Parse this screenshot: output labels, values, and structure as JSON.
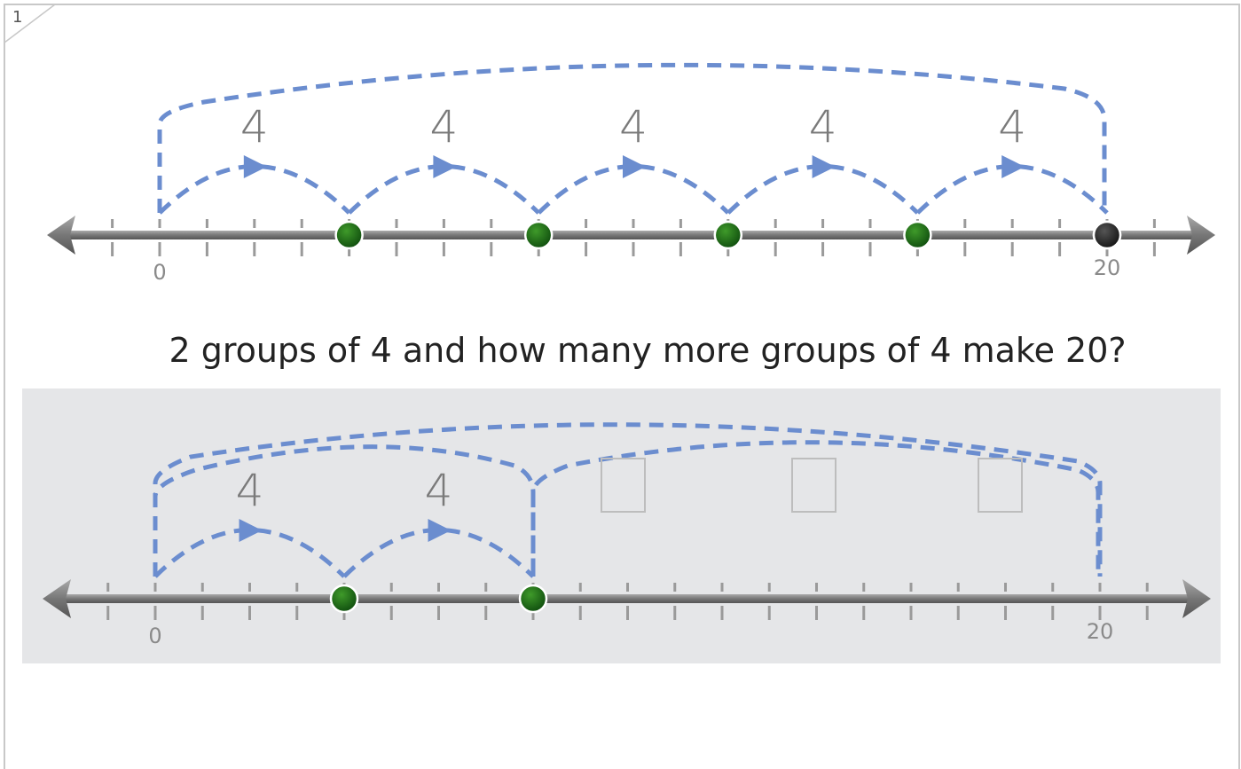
{
  "page_number": "1",
  "top_line": {
    "jump_labels": [
      "4",
      "4",
      "4",
      "4",
      "4"
    ],
    "start_label": "0",
    "end_label": "20"
  },
  "question": "2 groups of 4 and how many more groups of 4 make 20?",
  "bottom_line": {
    "jump_labels": [
      "4",
      "4"
    ],
    "start_label": "0",
    "end_label": "20"
  }
}
